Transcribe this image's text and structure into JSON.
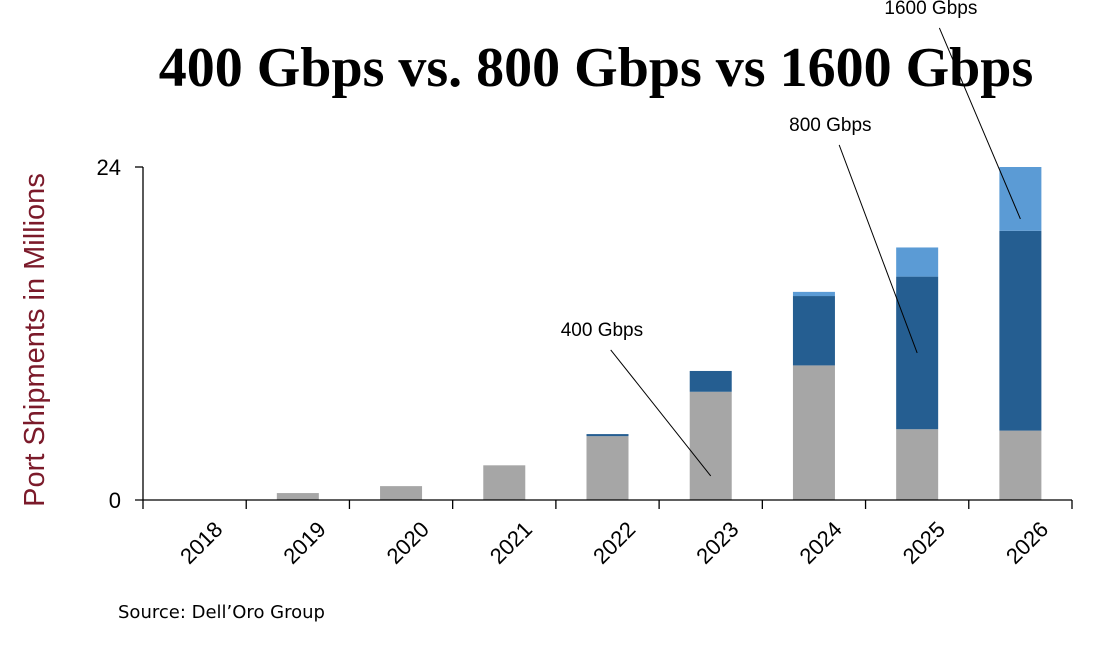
{
  "chart_data": {
    "type": "bar",
    "stacked": true,
    "title": "400 Gbps vs. 800 Gbps vs 1600 Gbps",
    "xlabel": "",
    "ylabel": "Port Shipments in Millions",
    "ylim": [
      0,
      24
    ],
    "yticks": [
      "0",
      "24"
    ],
    "grid": false,
    "categories": [
      "2018",
      "2019",
      "2020",
      "2021",
      "2022",
      "2023",
      "2024",
      "2025",
      "2026"
    ],
    "series": [
      {
        "name": "400 Gbps",
        "color": "#A6A6A6",
        "values": [
          0,
          0.5,
          1.0,
          2.5,
          4.6,
          7.8,
          9.7,
          5.1,
          5.0
        ]
      },
      {
        "name": "800 Gbps",
        "color": "#255E91",
        "values": [
          0,
          0,
          0,
          0,
          0.15,
          1.5,
          5.0,
          11.0,
          14.4
        ]
      },
      {
        "name": "1600 Gbps",
        "color": "#5B9BD5",
        "values": [
          0,
          0,
          0,
          0,
          0,
          0,
          0.3,
          2.1,
          4.6
        ]
      }
    ],
    "annotations": [
      {
        "text": "400 Gbps",
        "series": 0,
        "category": "2023"
      },
      {
        "text": "800 Gbps",
        "series": 1,
        "category": "2025"
      },
      {
        "text": "1600 Gbps",
        "series": 2,
        "category": "2026"
      }
    ],
    "ylabel_color": "#7B1A2A",
    "source": "Source: Dell’Oro Group"
  }
}
